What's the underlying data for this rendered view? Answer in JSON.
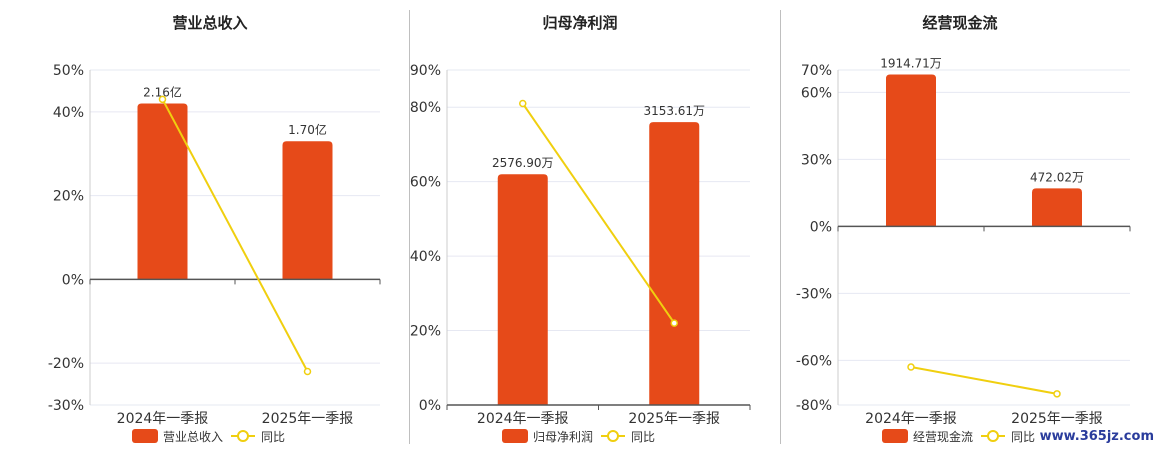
{
  "watermark": "www.365jz.com",
  "colors": {
    "bar": "#E64A19",
    "line": "#F0CF0F",
    "grid": "#e6e8f2",
    "axis": "#555555"
  },
  "chart_data": [
    {
      "type": "bar",
      "title": "营业总收入",
      "categories": [
        "2024年一季报",
        "2025年一季报"
      ],
      "bar_series_name": "营业总收入",
      "line_series_name": "同比",
      "bar_heights_pct": [
        42,
        33
      ],
      "bar_labels": [
        "2.16亿",
        "1.70亿"
      ],
      "line_values_pct": [
        43,
        -22
      ],
      "ylim": [
        -30,
        50
      ],
      "yticks": [
        50,
        40,
        20,
        0,
        -20,
        -30
      ],
      "ytick_labels": [
        "50%",
        "40%",
        "20%",
        "0%",
        "-20%",
        "-30%"
      ]
    },
    {
      "type": "bar",
      "title": "归母净利润",
      "categories": [
        "2024年一季报",
        "2025年一季报"
      ],
      "bar_series_name": "归母净利润",
      "line_series_name": "同比",
      "bar_heights_pct": [
        62,
        76
      ],
      "bar_labels": [
        "2576.90万",
        "3153.61万"
      ],
      "line_values_pct": [
        81,
        22
      ],
      "ylim": [
        0,
        90
      ],
      "yticks": [
        90,
        80,
        60,
        40,
        20,
        0
      ],
      "ytick_labels": [
        "90%",
        "80%",
        "60%",
        "40%",
        "20%",
        "0%"
      ]
    },
    {
      "type": "bar",
      "title": "经营现金流",
      "categories": [
        "2024年一季报",
        "2025年一季报"
      ],
      "bar_series_name": "经营现金流",
      "line_series_name": "同比",
      "bar_heights_pct": [
        68,
        17
      ],
      "bar_labels": [
        "1914.71万",
        "472.02万"
      ],
      "line_values_pct": [
        -63,
        -75
      ],
      "ylim": [
        -80,
        70
      ],
      "yticks": [
        70,
        60,
        30,
        0,
        -30,
        -60,
        -80
      ],
      "ytick_labels": [
        "70%",
        "60%",
        "30%",
        "0%",
        "-30%",
        "-60%",
        "-80%"
      ]
    }
  ]
}
